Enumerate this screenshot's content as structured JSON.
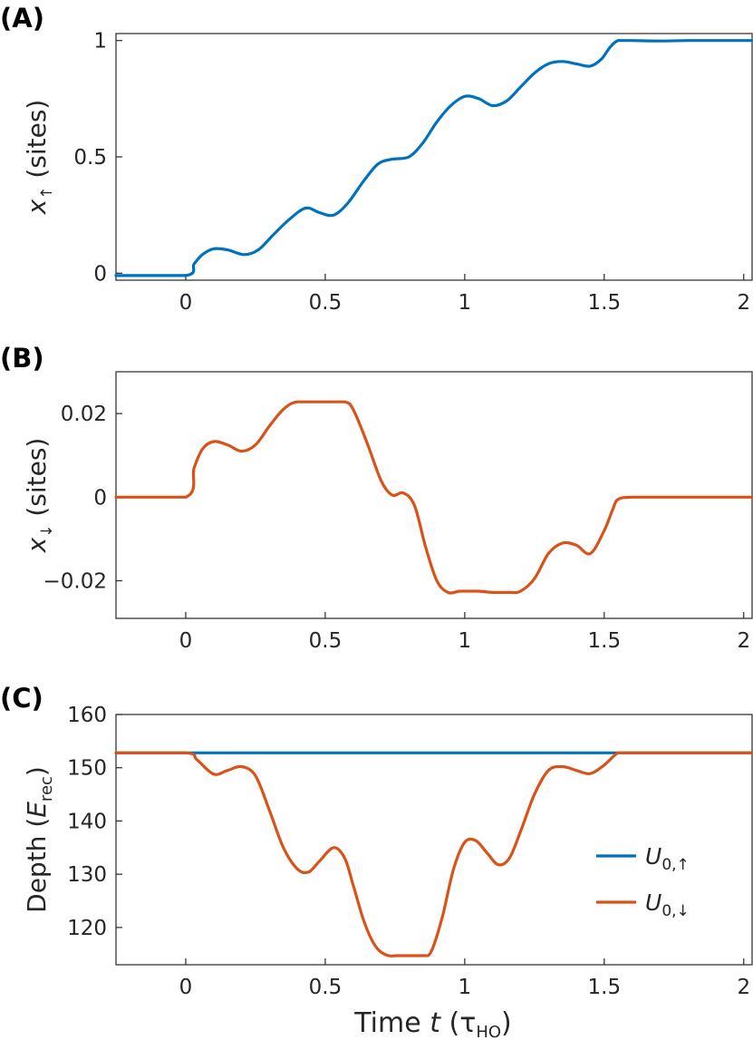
{
  "colors": {
    "up": "#0072BD",
    "down": "#D95319",
    "axis": "#262626"
  },
  "chart_data": [
    {
      "panel": "(A)",
      "type": "line",
      "ylabel_symbol": "x",
      "ylabel_subscript": "↑",
      "ylabel_rest": " (sites)",
      "xlim": [
        -0.25,
        2.03
      ],
      "ylim": [
        -0.03,
        1.03
      ],
      "xticks": [
        "0",
        "0.5",
        "1",
        "1.5",
        "2"
      ],
      "xtick_values": [
        0,
        0.5,
        1,
        1.5,
        2
      ],
      "yticks": [
        "0",
        "0.5",
        "1"
      ],
      "ytick_values": [
        0,
        0.5,
        1
      ],
      "series": [
        {
          "color": "#0072BD",
          "x": [
            -0.25,
            0,
            0.03,
            0.06,
            0.1,
            0.15,
            0.21,
            0.26,
            0.31,
            0.37,
            0.43,
            0.48,
            0.53,
            0.58,
            0.64,
            0.69,
            0.74,
            0.8,
            0.85,
            0.9,
            0.95,
            1.0,
            1.05,
            1.1,
            1.15,
            1.2,
            1.25,
            1.3,
            1.35,
            1.4,
            1.45,
            1.49,
            1.52,
            1.55,
            1.6,
            1.7,
            1.8,
            1.9,
            2.03
          ],
          "y": [
            -0.01,
            -0.01,
            0.04,
            0.08,
            0.105,
            0.1,
            0.08,
            0.1,
            0.16,
            0.23,
            0.28,
            0.26,
            0.25,
            0.3,
            0.4,
            0.47,
            0.49,
            0.5,
            0.56,
            0.65,
            0.72,
            0.76,
            0.75,
            0.72,
            0.74,
            0.8,
            0.86,
            0.9,
            0.91,
            0.9,
            0.89,
            0.92,
            0.97,
            1.0,
            1.0,
            0.998,
            1.0,
            1.0,
            1.0
          ]
        }
      ]
    },
    {
      "panel": "(B)",
      "type": "line",
      "ylabel_symbol": "x",
      "ylabel_subscript": "↓",
      "ylabel_rest": " (sites)",
      "xlim": [
        -0.25,
        2.03
      ],
      "ylim": [
        -0.029,
        0.03
      ],
      "xticks": [
        "0",
        "0.5",
        "1",
        "1.5",
        "2"
      ],
      "xtick_values": [
        0,
        0.5,
        1,
        1.5,
        2
      ],
      "yticks": [
        "0.02",
        "0",
        "−0.02"
      ],
      "ytick_values": [
        0.02,
        0,
        -0.02
      ],
      "series": [
        {
          "color": "#D95319",
          "x": [
            -0.25,
            0,
            0.03,
            0.06,
            0.1,
            0.15,
            0.2,
            0.25,
            0.3,
            0.35,
            0.4,
            0.5,
            0.57,
            0.6,
            0.65,
            0.7,
            0.74,
            0.78,
            0.82,
            0.86,
            0.9,
            0.94,
            0.98,
            1.0,
            1.05,
            1.1,
            1.16,
            1.2,
            1.25,
            1.3,
            1.35,
            1.4,
            1.45,
            1.5,
            1.53,
            1.55,
            1.6,
            1.7,
            1.8,
            1.9,
            2.03
          ],
          "y": [
            0,
            0,
            0.007,
            0.0115,
            0.0133,
            0.0125,
            0.011,
            0.0125,
            0.017,
            0.021,
            0.0228,
            0.0228,
            0.0228,
            0.021,
            0.013,
            0.004,
            0.0005,
            0.001,
            -0.002,
            -0.012,
            -0.02,
            -0.0228,
            -0.0225,
            -0.0225,
            -0.0225,
            -0.0228,
            -0.0228,
            -0.0225,
            -0.0195,
            -0.0135,
            -0.011,
            -0.0115,
            -0.0135,
            -0.008,
            -0.003,
            -0.0005,
            0,
            0,
            0,
            0,
            0
          ]
        }
      ]
    },
    {
      "panel": "(C)",
      "type": "line",
      "ylabel_text": "Depth  (",
      "ylabel_symbol": "E",
      "ylabel_subscript": "rec",
      "ylabel_rest": ")",
      "xlabel_prefix": "Time ",
      "xlabel_symbol": "t",
      "xlabel_mid": " (τ",
      "xlabel_sub": "HO",
      "xlabel_suffix": ")",
      "xlim": [
        -0.25,
        2.03
      ],
      "ylim": [
        113,
        160
      ],
      "xticks": [
        "0",
        "0.5",
        "1",
        "1.5",
        "2"
      ],
      "xtick_values": [
        0,
        0.5,
        1,
        1.5,
        2
      ],
      "yticks": [
        "160",
        "150",
        "140",
        "130",
        "120"
      ],
      "ytick_values": [
        160,
        150,
        140,
        130,
        120
      ],
      "legend_position": "right",
      "series": [
        {
          "name": "U",
          "name_sub": "0,↑",
          "color": "#0072BD",
          "x": [
            -0.25,
            2.03
          ],
          "y": [
            152.8,
            152.8
          ]
        },
        {
          "name": "U",
          "name_sub": "0,↓",
          "color": "#D95319",
          "x": [
            -0.25,
            0,
            0.04,
            0.1,
            0.15,
            0.2,
            0.25,
            0.3,
            0.35,
            0.4,
            0.44,
            0.48,
            0.53,
            0.57,
            0.6,
            0.64,
            0.68,
            0.72,
            0.76,
            0.8,
            0.85,
            0.88,
            0.92,
            0.96,
            1.0,
            1.04,
            1.08,
            1.12,
            1.16,
            1.2,
            1.25,
            1.3,
            1.35,
            1.4,
            1.45,
            1.5,
            1.55,
            1.6,
            1.8,
            2.03
          ],
          "y": [
            152.8,
            152.8,
            151.5,
            148.8,
            149.5,
            150.2,
            148.5,
            142,
            135,
            131,
            130.4,
            132.5,
            135,
            133,
            128,
            121,
            116.5,
            114.8,
            114.7,
            114.7,
            114.7,
            115.5,
            122,
            131,
            136,
            136.3,
            134,
            131.8,
            133,
            138,
            145,
            149.5,
            150.2,
            149.5,
            148.9,
            150.5,
            152.8,
            152.8,
            152.8,
            152.8
          ]
        }
      ]
    }
  ]
}
